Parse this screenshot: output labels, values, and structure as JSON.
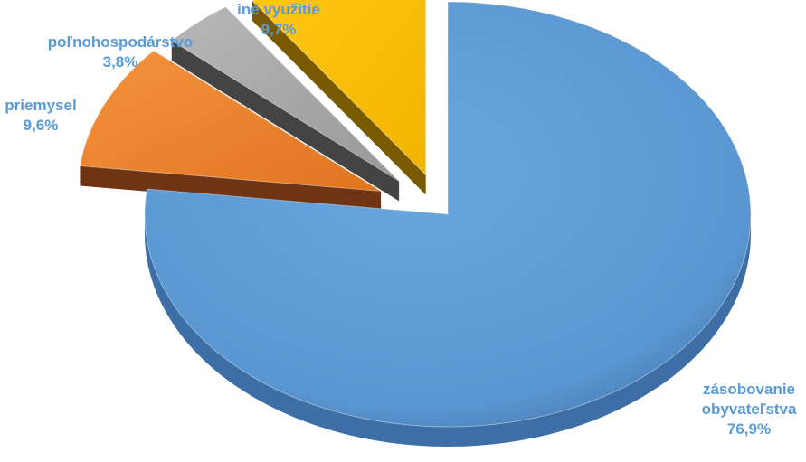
{
  "chart_data": {
    "type": "pie",
    "style": "3d-exploded",
    "title": "",
    "legend": "none",
    "slices": [
      {
        "name": "zásobovanie",
        "name2": "obyvateľstva",
        "value": 76.9,
        "label": "76,9%",
        "color": "#5b9bd5"
      },
      {
        "name": "priemysel",
        "name2": "",
        "value": 9.6,
        "label": "9,6%",
        "color": "#ed7d31"
      },
      {
        "name": "poľnohospodárstvo",
        "name2": "",
        "value": 3.8,
        "label": "3,8%",
        "color": "#a5a5a5"
      },
      {
        "name": "iné využitie",
        "name2": "",
        "value": 9.7,
        "label": "9,7%",
        "color": "#ffc000"
      }
    ],
    "label_color": "#5b9bd5"
  }
}
